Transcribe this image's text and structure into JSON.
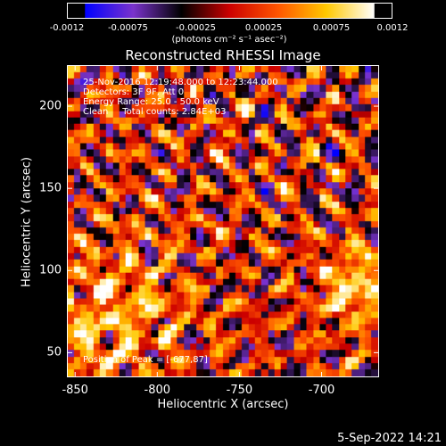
{
  "chart_data": {
    "type": "heatmap",
    "title": "Reconstructed RHESSI Image",
    "xlabel": "Heliocentric X (arcsec)",
    "ylabel": "Heliocentric Y (arcsec)",
    "xlim": [
      -855,
      -665
    ],
    "ylim": [
      35,
      225
    ],
    "x_ticks": [
      "-850",
      "-800",
      "-750",
      "-700"
    ],
    "x_tick_values": [
      -850,
      -800,
      -750,
      -700
    ],
    "y_ticks": [
      "50",
      "100",
      "150",
      "200"
    ],
    "y_tick_values": [
      50,
      100,
      150,
      200
    ],
    "colorbar": {
      "range": [
        -0.0012,
        0.0012
      ],
      "ticks": [
        "-0.0012",
        "-0.00075",
        "-0.00025",
        "0.00025",
        "0.00075",
        "0.0012"
      ],
      "tick_values": [
        -0.0012,
        -0.00075,
        -0.00025,
        0.00025,
        0.00075,
        0.0012
      ],
      "unit": "(photons cm⁻² s⁻¹ asec⁻²)",
      "colors": [
        "#0000ff",
        "#7a33cc",
        "#000000",
        "#cc0000",
        "#ff5500",
        "#ffc800",
        "#ffffff"
      ]
    },
    "annotations": {
      "time_range": "25-Nov-2016 12:19:48.000 to 12:23:44.000",
      "detectors": "Detectors: 3F 9F, Att 0",
      "energy_range": "Energy Range: 25.0 - 50.0 keV",
      "method": "Clean     Total counts: 2.84E+03",
      "peak": "Position of Peak = [-677,87]"
    },
    "peak_position": [
      -677,
      87
    ]
  },
  "footer": {
    "date_stamp": "5-Sep-2022 14:21"
  }
}
